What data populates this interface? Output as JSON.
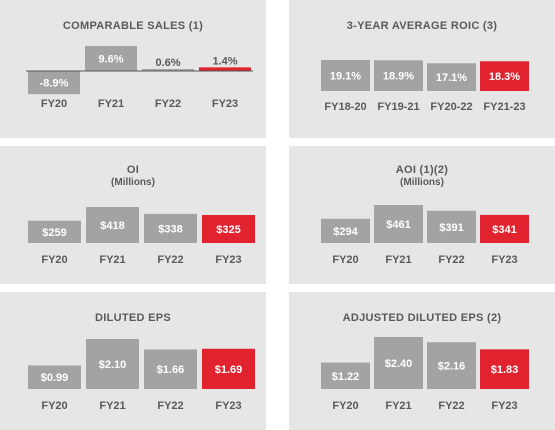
{
  "colors": {
    "gray_bar": "#a3a3a3",
    "highlight_bar": "#e0232f",
    "panel_bg": "#e6e6e6",
    "text": "#5a5a5a",
    "baseline": "#555555"
  },
  "chart_data": [
    {
      "type": "bar",
      "title": "COMPARABLE SALES (1)",
      "subtitle": "",
      "categories": [
        "FY20",
        "FY21",
        "FY22",
        "FY23"
      ],
      "values": [
        -8.9,
        9.6,
        0.6,
        1.4
      ],
      "labels": [
        "-8.9%",
        "9.6%",
        "0.6%",
        "1.4%"
      ],
      "highlight_index": 3,
      "ylim": [
        -10,
        10
      ]
    },
    {
      "type": "bar",
      "title": "3-YEAR AVERAGE ROIC (3)",
      "subtitle": "",
      "categories": [
        "FY18-20",
        "FY19-21",
        "FY20-22",
        "FY21-23"
      ],
      "values": [
        19.1,
        18.9,
        17.1,
        18.3
      ],
      "labels": [
        "19.1%",
        "18.9%",
        "17.1%",
        "18.3%"
      ],
      "highlight_index": 3,
      "ylim": [
        0,
        19.1
      ]
    },
    {
      "type": "bar",
      "title": "OI",
      "subtitle": "(Millions)",
      "categories": [
        "FY20",
        "FY21",
        "FY22",
        "FY23"
      ],
      "values": [
        259,
        418,
        338,
        325
      ],
      "labels": [
        "$259",
        "$418",
        "$338",
        "$325"
      ],
      "highlight_index": 3,
      "ylim": [
        0,
        418
      ]
    },
    {
      "type": "bar",
      "title": "AOI (1)(2)",
      "subtitle": "(Millions)",
      "categories": [
        "FY20",
        "FY21",
        "FY22",
        "FY23"
      ],
      "values": [
        294,
        461,
        391,
        341
      ],
      "labels": [
        "$294",
        "$461",
        "$391",
        "$341"
      ],
      "highlight_index": 3,
      "ylim": [
        0,
        461
      ]
    },
    {
      "type": "bar",
      "title": "DILUTED EPS",
      "subtitle": "",
      "categories": [
        "FY20",
        "FY21",
        "FY22",
        "FY23"
      ],
      "values": [
        0.99,
        2.1,
        1.66,
        1.69
      ],
      "labels": [
        "$0.99",
        "$2.10",
        "$1.66",
        "$1.69"
      ],
      "highlight_index": 3,
      "ylim": [
        0,
        2.1
      ]
    },
    {
      "type": "bar",
      "title": "ADJUSTED DILUTED EPS (2)",
      "subtitle": "",
      "categories": [
        "FY20",
        "FY21",
        "FY22",
        "FY23"
      ],
      "values": [
        1.22,
        2.4,
        2.16,
        1.83
      ],
      "labels": [
        "$1.22",
        "$2.40",
        "$2.16",
        "$1.83"
      ],
      "highlight_index": 3,
      "ylim": [
        0,
        2.4
      ]
    }
  ]
}
